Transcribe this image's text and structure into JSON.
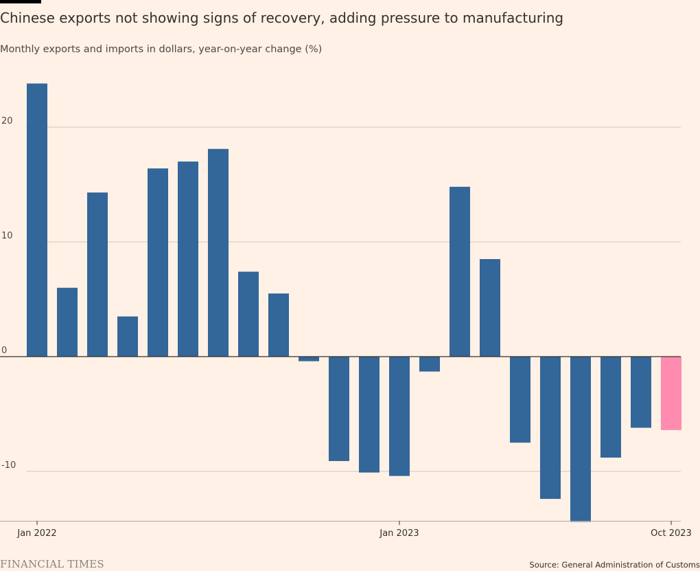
{
  "title": "Chinese exports not showing signs of recovery, adding pressure to manufacturing",
  "subtitle": "Monthly exports and imports in dollars, year-on-year change (%)",
  "footer": {
    "logo": "FINANCIAL TIMES",
    "source": "Source: General Administration of Customs"
  },
  "colors": {
    "background": "#FFF1E5",
    "bar": "#336699",
    "highlight": "#FF8BB0",
    "gridline": "#CEC6B9"
  },
  "chart_data": {
    "type": "bar",
    "categories": [
      "Jan 2022",
      "Feb 2022",
      "Mar 2022",
      "Apr 2022",
      "May 2022",
      "Jun 2022",
      "Jul 2022",
      "Aug 2022",
      "Sep 2022",
      "Oct 2022",
      "Nov 2022",
      "Dec 2022",
      "Jan 2023",
      "Feb 2023",
      "Mar 2023",
      "Apr 2023",
      "May 2023",
      "Jun 2023",
      "Jul 2023",
      "Aug 2023",
      "Sep 2023",
      "Oct 2023"
    ],
    "values": [
      23.8,
      6.0,
      14.3,
      3.5,
      16.4,
      17.0,
      18.1,
      7.4,
      5.5,
      -0.4,
      -9.1,
      -10.1,
      -10.4,
      -1.3,
      14.8,
      8.5,
      -7.5,
      -12.4,
      -14.4,
      -8.8,
      -6.2,
      -6.4
    ],
    "highlight_index": 21,
    "x_tick_labels": [
      {
        "index": 0,
        "label": "Jan 2022"
      },
      {
        "index": 12,
        "label": "Jan 2023"
      },
      {
        "index": 21,
        "label": "Oct 2023"
      }
    ],
    "y_ticks": [
      20,
      10,
      0,
      -10
    ],
    "ylim": [
      -14.4,
      24.5
    ],
    "grid": true
  }
}
